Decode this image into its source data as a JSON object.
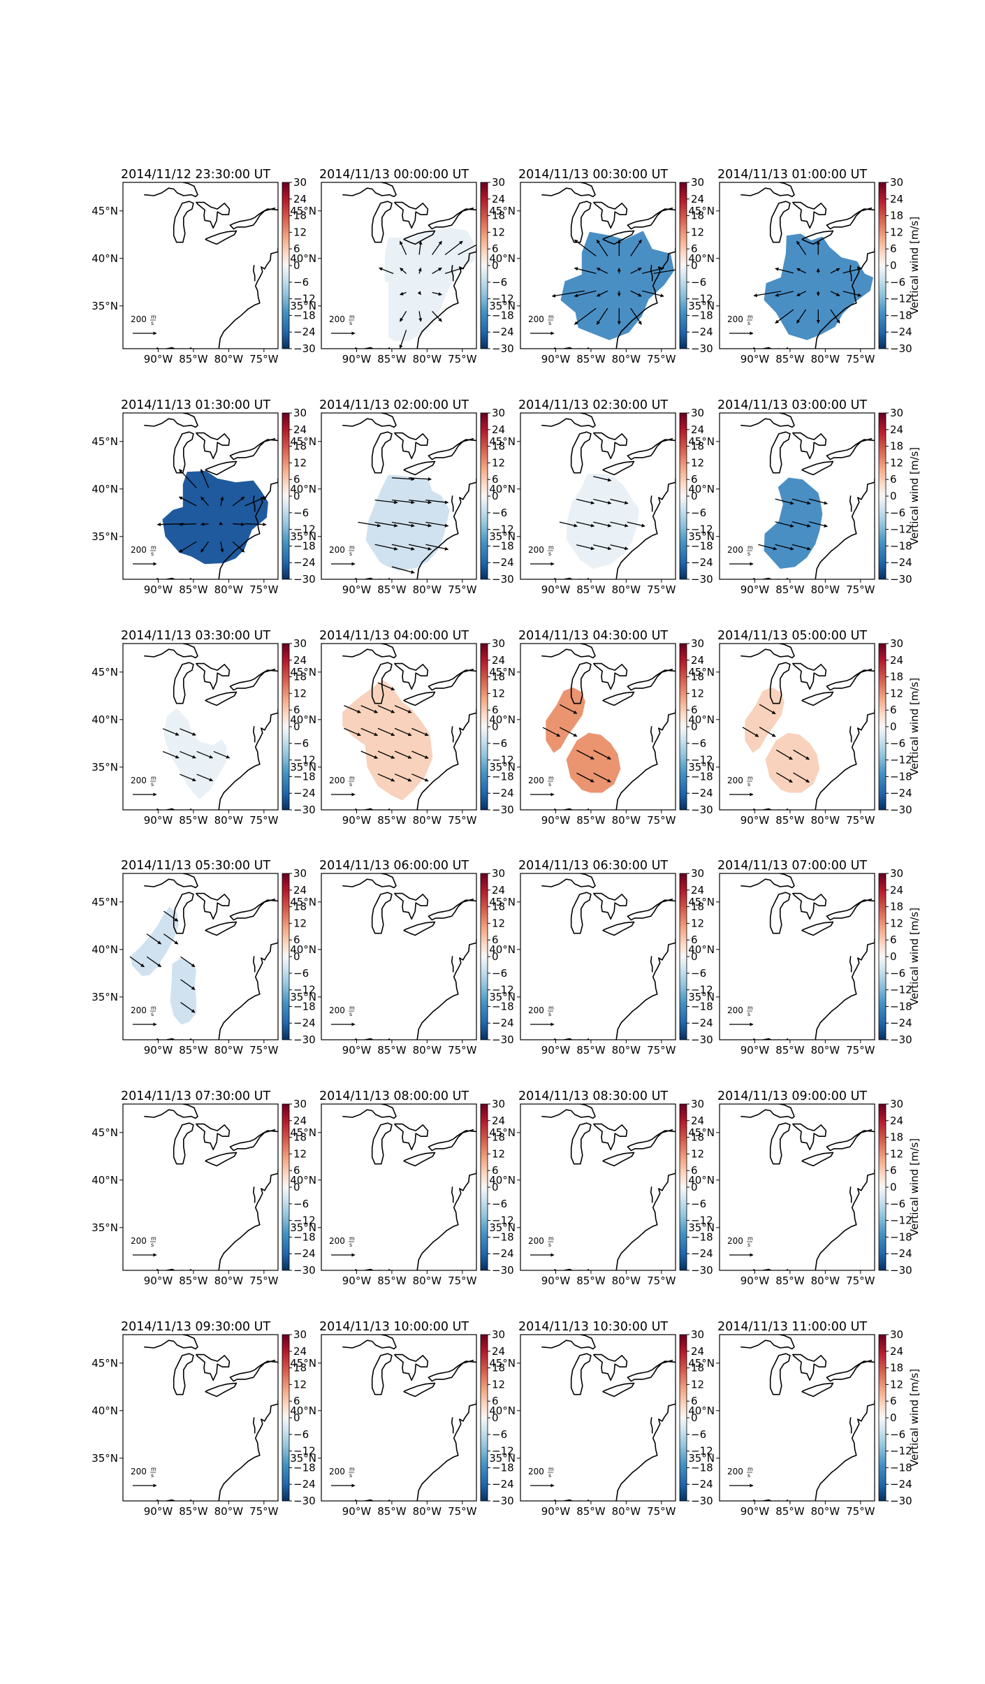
{
  "figure": {
    "colorbar_label": "Vertical wind [m/s]",
    "colorbar_ticks": [
      "30",
      "24",
      "18",
      "12",
      "6",
      "0",
      "−6",
      "−12",
      "−18",
      "−24",
      "−30"
    ],
    "lat_ticks": [
      "45°N",
      "40°N",
      "35°N"
    ],
    "lon_ticks": [
      "90°W",
      "85°W",
      "80°W",
      "75°W"
    ],
    "scale_label": "200",
    "scale_unit_num": "m",
    "scale_unit_den": "s",
    "colors": {
      "strong_blue": "#1f5a9e",
      "medium_blue": "#4a8fc4",
      "light_blue": "#d0e2ef",
      "pale_blue": "#e9f1f6",
      "medium_orange": "#ea9470",
      "light_orange": "#f8d2bc"
    }
  },
  "chart_data": {
    "type": "heatmap",
    "value_range": [
      -30,
      30
    ],
    "lon_range": [
      -95,
      -73
    ],
    "lat_range": [
      30.5,
      48
    ],
    "panels": [
      {
        "title": "2014/11/12 23:30:00 UT",
        "level": null,
        "mean_vertical_wind": 0
      },
      {
        "title": "2014/11/13 00:00:00 UT",
        "level": "pale_blue",
        "mean_vertical_wind": -2
      },
      {
        "title": "2014/11/13 00:30:00 UT",
        "level": "medium_blue",
        "mean_vertical_wind": -18
      },
      {
        "title": "2014/11/13 01:00:00 UT",
        "level": "medium_blue",
        "mean_vertical_wind": -15
      },
      {
        "title": "2014/11/13 01:30:00 UT",
        "level": "strong_blue",
        "mean_vertical_wind": -22
      },
      {
        "title": "2014/11/13 02:00:00 UT",
        "level": "light_blue",
        "mean_vertical_wind": -6
      },
      {
        "title": "2014/11/13 02:30:00 UT",
        "level": "pale_blue",
        "mean_vertical_wind": -3
      },
      {
        "title": "2014/11/13 03:00:00 UT",
        "level": "medium_blue",
        "mean_vertical_wind": -14
      },
      {
        "title": "2014/11/13 03:30:00 UT",
        "level": "pale_blue",
        "mean_vertical_wind": -2
      },
      {
        "title": "2014/11/13 04:00:00 UT",
        "level": "light_orange",
        "mean_vertical_wind": 6
      },
      {
        "title": "2014/11/13 04:30:00 UT",
        "level": "medium_orange",
        "mean_vertical_wind": 12
      },
      {
        "title": "2014/11/13 05:00:00 UT",
        "level": "light_orange",
        "mean_vertical_wind": 6
      },
      {
        "title": "2014/11/13 05:30:00 UT",
        "level": "light_blue",
        "mean_vertical_wind": -6
      },
      {
        "title": "2014/11/13 06:00:00 UT",
        "level": null,
        "mean_vertical_wind": 0
      },
      {
        "title": "2014/11/13 06:30:00 UT",
        "level": null,
        "mean_vertical_wind": 0
      },
      {
        "title": "2014/11/13 07:00:00 UT",
        "level": null,
        "mean_vertical_wind": 0
      },
      {
        "title": "2014/11/13 07:30:00 UT",
        "level": null,
        "mean_vertical_wind": 0
      },
      {
        "title": "2014/11/13 08:00:00 UT",
        "level": null,
        "mean_vertical_wind": 0
      },
      {
        "title": "2014/11/13 08:30:00 UT",
        "level": null,
        "mean_vertical_wind": 0
      },
      {
        "title": "2014/11/13 09:00:00 UT",
        "level": null,
        "mean_vertical_wind": 0
      },
      {
        "title": "2014/11/13 09:30:00 UT",
        "level": null,
        "mean_vertical_wind": 0
      },
      {
        "title": "2014/11/13 10:00:00 UT",
        "level": null,
        "mean_vertical_wind": 0
      },
      {
        "title": "2014/11/13 10:30:00 UT",
        "level": null,
        "mean_vertical_wind": 0
      },
      {
        "title": "2014/11/13 11:00:00 UT",
        "level": null,
        "mean_vertical_wind": 0
      }
    ]
  }
}
